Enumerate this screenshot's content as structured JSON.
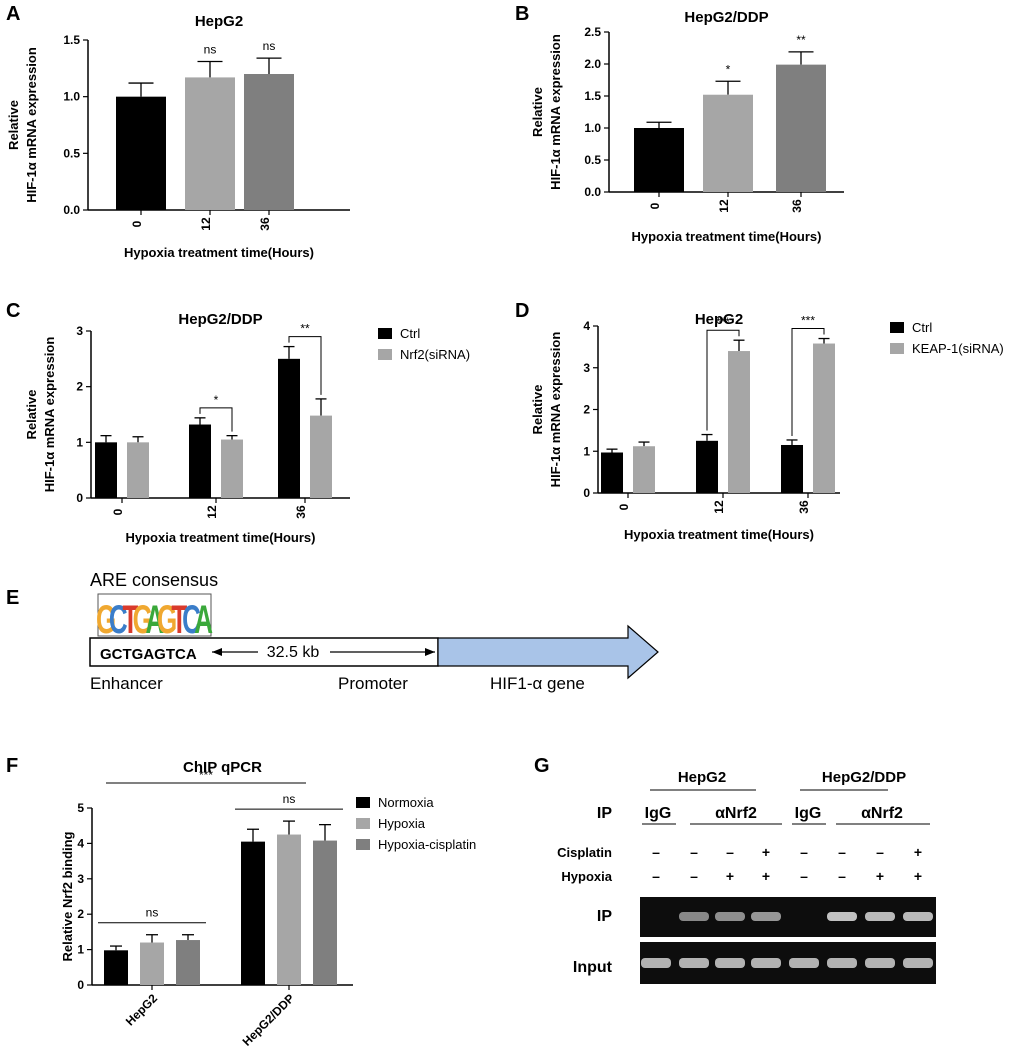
{
  "panels": {
    "A": {
      "letter": "A"
    },
    "B": {
      "letter": "B"
    },
    "C": {
      "letter": "C"
    },
    "D": {
      "letter": "D"
    },
    "E": {
      "letter": "E"
    },
    "F": {
      "letter": "F"
    },
    "G": {
      "letter": "G"
    }
  },
  "chart_data": [
    {
      "id": "A",
      "type": "bar",
      "title": "HepG2",
      "xlabel": "Hypoxia treatment time(Hours)",
      "ylabel_line1": "Relative",
      "ylabel_line2": "HIF-1α mRNA expression",
      "ylim": [
        0,
        1.5
      ],
      "yticks": [
        "0.0",
        "0.5",
        "1.0",
        "1.5"
      ],
      "categories": [
        "0",
        "12",
        "36"
      ],
      "values": [
        1.0,
        1.17,
        1.2
      ],
      "errors": [
        0.12,
        0.14,
        0.14
      ],
      "colors": [
        "#000000",
        "#a6a6a6",
        "#7f7f7f"
      ],
      "annotations": [
        "",
        "ns",
        "ns"
      ]
    },
    {
      "id": "B",
      "type": "bar",
      "title": "HepG2/DDP",
      "xlabel": "Hypoxia treatment time(Hours)",
      "ylabel_line1": "Relative",
      "ylabel_line2": "HIF-1α mRNA expression",
      "ylim": [
        0,
        2.5
      ],
      "yticks": [
        "0.0",
        "0.5",
        "1.0",
        "1.5",
        "2.0",
        "2.5"
      ],
      "categories": [
        "0",
        "12",
        "36"
      ],
      "values": [
        1.0,
        1.52,
        1.99
      ],
      "errors": [
        0.09,
        0.21,
        0.2
      ],
      "colors": [
        "#000000",
        "#a6a6a6",
        "#7f7f7f"
      ],
      "annotations": [
        "",
        "*",
        "**"
      ]
    },
    {
      "id": "C",
      "type": "bar",
      "title": "HepG2/DDP",
      "xlabel": "Hypoxia treatment time(Hours)",
      "ylabel_line1": "Relative",
      "ylabel_line2": "HIF-1α mRNA expression",
      "ylim": [
        0,
        3
      ],
      "yticks": [
        "0",
        "1",
        "2",
        "3"
      ],
      "categories": [
        "0",
        "12",
        "36"
      ],
      "series": [
        {
          "name": "Ctrl",
          "color": "#000000",
          "values": [
            1.0,
            1.32,
            2.5
          ],
          "errors": [
            0.12,
            0.12,
            0.22
          ]
        },
        {
          "name": "Nrf2(siRNA)",
          "color": "#a6a6a6",
          "values": [
            1.0,
            1.05,
            1.48
          ],
          "errors": [
            0.1,
            0.07,
            0.3
          ]
        }
      ],
      "brackets": [
        {
          "category": 1,
          "label": "*"
        },
        {
          "category": 2,
          "label": "**"
        }
      ],
      "legend": "right"
    },
    {
      "id": "D",
      "type": "bar",
      "title": "HepG2",
      "xlabel": "Hypoxia treatment time(Hours)",
      "ylabel_line1": "Relative",
      "ylabel_line2": "HIF-1α mRNA expression",
      "ylim": [
        0,
        4
      ],
      "yticks": [
        "0",
        "1",
        "2",
        "3",
        "4"
      ],
      "categories": [
        "0",
        "12",
        "36"
      ],
      "series": [
        {
          "name": "Ctrl",
          "color": "#000000",
          "values": [
            0.97,
            1.25,
            1.15
          ],
          "errors": [
            0.08,
            0.15,
            0.12
          ]
        },
        {
          "name": "KEAP-1(siRNA)",
          "color": "#a6a6a6",
          "values": [
            1.12,
            3.4,
            3.58
          ],
          "errors": [
            0.1,
            0.26,
            0.12
          ]
        }
      ],
      "brackets": [
        {
          "category": 1,
          "label": "***"
        },
        {
          "category": 2,
          "label": "***"
        }
      ],
      "legend": "right"
    },
    {
      "id": "F",
      "type": "bar",
      "title": "ChIP qPCR",
      "xlabel": "",
      "ylabel_line1": "",
      "ylabel_line2": "Relative Nrf2 binding",
      "ylim": [
        0,
        5
      ],
      "yticks": [
        "0",
        "1",
        "2",
        "3",
        "4",
        "5"
      ],
      "categories": [
        "HepG2",
        "HepG2/DDP"
      ],
      "series": [
        {
          "name": "Normoxia",
          "color": "#000000",
          "values": [
            0.98,
            4.05
          ],
          "errors": [
            0.12,
            0.35
          ]
        },
        {
          "name": "Hypoxia",
          "color": "#a6a6a6",
          "values": [
            1.2,
            4.25
          ],
          "errors": [
            0.22,
            0.38
          ]
        },
        {
          "name": "Hypoxia-cisplatin",
          "color": "#7f7f7f",
          "values": [
            1.27,
            4.08
          ],
          "errors": [
            0.15,
            0.45
          ]
        }
      ],
      "group_annotations": [
        "ns",
        "ns"
      ],
      "overall_annotation": "***",
      "legend": "right"
    }
  ],
  "diagram_E": {
    "motif_title": "ARE consensus",
    "motif_letters": [
      "G",
      "C",
      "T",
      "G",
      "A",
      "G",
      "T",
      "C",
      "A"
    ],
    "motif_colors": {
      "G": "#f0a830",
      "C": "#3a7dc9",
      "T": "#d93a2b",
      "A": "#3aa83a"
    },
    "sequence": "GCTGAGTCA",
    "distance": "32.5 kb",
    "enhancer": "Enhancer",
    "promoter": "Promoter",
    "gene": "HIF1-α gene",
    "gene_color": "#a9c4e8"
  },
  "gel_G": {
    "group1": "HepG2",
    "group2": "HepG2/DDP",
    "ip_label": "IP",
    "igg": "IgG",
    "anrf2": "αNrf2",
    "cisplatin_label": "Cisplatin",
    "hypoxia_label": "Hypoxia",
    "cisplatin": [
      "–",
      "–",
      "–",
      "+",
      "–",
      "–",
      "–",
      "+"
    ],
    "hypoxia": [
      "–",
      "–",
      "+",
      "+",
      "–",
      "–",
      "+",
      "+"
    ],
    "row_ip": "IP",
    "row_input": "Input",
    "ip_band_intensity": [
      0,
      0.55,
      0.6,
      0.65,
      0,
      0.95,
      0.9,
      0.9
    ],
    "input_band_intensity": [
      0.85,
      0.85,
      0.85,
      0.85,
      0.85,
      0.85,
      0.85,
      0.85
    ]
  }
}
